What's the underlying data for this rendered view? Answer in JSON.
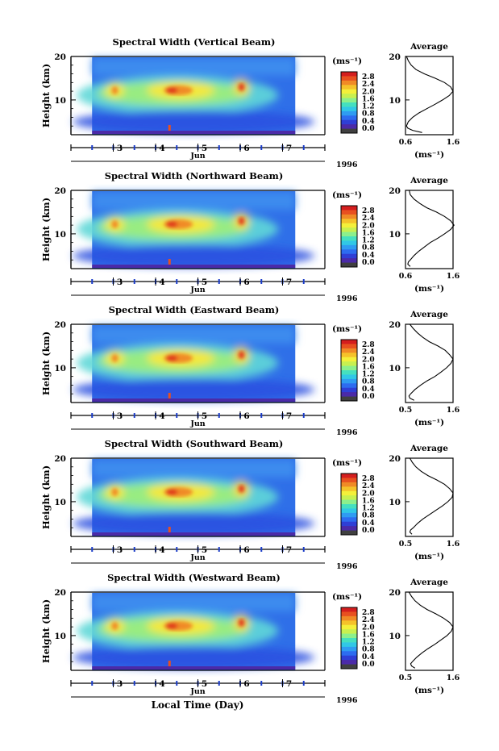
{
  "figure": {
    "xlabel": "Local Time (Day)",
    "colors": {
      "scale": [
        "#404040",
        "#4b2aa8",
        "#2f3fd6",
        "#2d6cf0",
        "#2f9cf2",
        "#31c8e6",
        "#45e0bf",
        "#8cf08c",
        "#c8f050",
        "#f4f03a",
        "#f5c22a",
        "#f08a26",
        "#e85020",
        "#d41e1e"
      ],
      "tick_blue": "#1a3cc8"
    }
  },
  "chart_data": [
    {
      "type": "heatmap",
      "title": "Spectral Width (Vertical Beam)",
      "ylabel": "Height (km)",
      "yticks": [
        "20",
        "10"
      ],
      "ylim": [
        2,
        20
      ],
      "xticks": [
        "3",
        "4",
        "5",
        "6",
        "7"
      ],
      "x_unit_label": "Jun",
      "year": "1996",
      "xlim": [
        2.0,
        8.0
      ],
      "data_xrange": [
        2.5,
        7.3
      ],
      "colorbar": {
        "unit": "(ms⁻¹)",
        "ticks": [
          "2.8",
          "2.4",
          "2.0",
          "1.6",
          "1.2",
          "0.8",
          "0.4",
          "0.0"
        ]
      },
      "profile": {
        "title": "Average",
        "xlabel": "(ms⁻¹)",
        "xticks": [
          "0.6",
          "1.6"
        ],
        "xlim": [
          0.6,
          1.6
        ],
        "yticks": [
          "20",
          "10"
        ],
        "heights": [
          2.5,
          3,
          3.5,
          4,
          5,
          6,
          7,
          8,
          9,
          10,
          11,
          12,
          13,
          14,
          15,
          16,
          17,
          18,
          19,
          20
        ],
        "values": [
          0.95,
          0.75,
          0.65,
          0.62,
          0.66,
          0.75,
          0.88,
          1.05,
          1.22,
          1.38,
          1.52,
          1.6,
          1.55,
          1.42,
          1.22,
          1.0,
          0.82,
          0.72,
          0.66,
          0.62
        ]
      }
    },
    {
      "type": "heatmap",
      "title": "Spectral Width (Northward Beam)",
      "ylabel": "Height (km)",
      "yticks": [
        "20",
        "10"
      ],
      "ylim": [
        2,
        20
      ],
      "xticks": [
        "3",
        "4",
        "5",
        "6",
        "7"
      ],
      "x_unit_label": "Jun",
      "year": "1996",
      "xlim": [
        2.0,
        8.0
      ],
      "data_xrange": [
        2.5,
        7.3
      ],
      "colorbar": {
        "unit": "(ms⁻¹)",
        "ticks": [
          "2.8",
          "2.4",
          "2.0",
          "1.6",
          "1.2",
          "0.8",
          "0.4",
          "0.0"
        ]
      },
      "profile": {
        "title": "Average",
        "xlabel": "(ms⁻¹)",
        "xticks": [
          "0.6",
          "1.6"
        ],
        "xlim": [
          0.6,
          1.6
        ],
        "yticks": [
          "20",
          "10"
        ],
        "heights": [
          2.5,
          3,
          3.5,
          4,
          5,
          6,
          7,
          8,
          9,
          10,
          11,
          12,
          13,
          14,
          15,
          16,
          17,
          18,
          19,
          20
        ],
        "values": [
          0.7,
          0.65,
          0.66,
          0.7,
          0.78,
          0.88,
          1.0,
          1.12,
          1.28,
          1.42,
          1.55,
          1.62,
          1.55,
          1.42,
          1.25,
          1.05,
          0.9,
          0.78,
          0.7,
          0.68
        ]
      }
    },
    {
      "type": "heatmap",
      "title": "Spectral Width (Eastward Beam)",
      "ylabel": "Height (km)",
      "yticks": [
        "20",
        "10"
      ],
      "ylim": [
        2,
        20
      ],
      "xticks": [
        "3",
        "4",
        "5",
        "6",
        "7"
      ],
      "x_unit_label": "Jun",
      "year": "1996",
      "xlim": [
        2.0,
        8.0
      ],
      "data_xrange": [
        2.5,
        7.3
      ],
      "colorbar": {
        "unit": "(ms⁻¹)",
        "ticks": [
          "2.8",
          "2.4",
          "2.0",
          "1.6",
          "1.2",
          "0.8",
          "0.4",
          "0.0"
        ]
      },
      "profile": {
        "title": "Average",
        "xlabel": "(ms⁻¹)",
        "xticks": [
          "0.5",
          "1.6"
        ],
        "xlim": [
          0.5,
          1.6
        ],
        "yticks": [
          "20",
          "10"
        ],
        "heights": [
          2.5,
          3,
          3.5,
          4,
          5,
          6,
          7,
          8,
          9,
          10,
          11,
          12,
          13,
          14,
          15,
          16,
          17,
          18,
          19,
          20
        ],
        "values": [
          0.7,
          0.6,
          0.58,
          0.62,
          0.72,
          0.85,
          1.0,
          1.18,
          1.32,
          1.45,
          1.55,
          1.6,
          1.52,
          1.42,
          1.25,
          1.05,
          0.9,
          0.78,
          0.68,
          0.6
        ]
      }
    },
    {
      "type": "heatmap",
      "title": "Spectral Width (Southward Beam)",
      "ylabel": "Height (km)",
      "yticks": [
        "20",
        "10"
      ],
      "ylim": [
        2,
        20
      ],
      "xticks": [
        "3",
        "4",
        "5",
        "6",
        "7"
      ],
      "x_unit_label": "Jun",
      "year": "1996",
      "xlim": [
        2.0,
        8.0
      ],
      "data_xrange": [
        2.5,
        7.3
      ],
      "colorbar": {
        "unit": "(ms⁻¹)",
        "ticks": [
          "2.8",
          "2.4",
          "2.0",
          "1.6",
          "1.2",
          "0.8",
          "0.4",
          "0.0"
        ]
      },
      "profile": {
        "title": "Average",
        "xlabel": "(ms⁻¹)",
        "xticks": [
          "0.5",
          "1.6"
        ],
        "xlim": [
          0.5,
          1.6
        ],
        "yticks": [
          "20",
          "10"
        ],
        "heights": [
          2.5,
          3,
          3.5,
          4,
          5,
          6,
          7,
          8,
          9,
          10,
          11,
          12,
          13,
          14,
          15,
          16,
          17,
          18,
          19,
          20
        ],
        "values": [
          0.65,
          0.6,
          0.62,
          0.68,
          0.78,
          0.9,
          1.05,
          1.2,
          1.35,
          1.48,
          1.58,
          1.6,
          1.52,
          1.4,
          1.22,
          1.02,
          0.86,
          0.74,
          0.66,
          0.6
        ]
      }
    },
    {
      "type": "heatmap",
      "title": "Spectral Width (Westward Beam)",
      "ylabel": "Height (km)",
      "yticks": [
        "20",
        "10"
      ],
      "ylim": [
        2,
        20
      ],
      "xticks": [
        "3",
        "4",
        "5",
        "6",
        "7"
      ],
      "x_unit_label": "Jun",
      "year": "1996",
      "xlim": [
        2.0,
        8.0
      ],
      "data_xrange": [
        2.5,
        7.3
      ],
      "colorbar": {
        "unit": "(ms⁻¹)",
        "ticks": [
          "2.8",
          "2.4",
          "2.0",
          "1.6",
          "1.2",
          "0.8",
          "0.4",
          "0.0"
        ]
      },
      "profile": {
        "title": "Average",
        "xlabel": "(ms⁻¹)",
        "xticks": [
          "0.5",
          "1.6"
        ],
        "xlim": [
          0.5,
          1.6
        ],
        "yticks": [
          "20",
          "10"
        ],
        "heights": [
          2.5,
          3,
          3.5,
          4,
          5,
          6,
          7,
          8,
          9,
          10,
          11,
          12,
          13,
          14,
          15,
          16,
          17,
          18,
          19,
          20
        ],
        "values": [
          0.72,
          0.64,
          0.62,
          0.66,
          0.76,
          0.88,
          1.02,
          1.18,
          1.32,
          1.46,
          1.56,
          1.6,
          1.52,
          1.38,
          1.2,
          1.0,
          0.84,
          0.72,
          0.64,
          0.58
        ]
      }
    }
  ]
}
